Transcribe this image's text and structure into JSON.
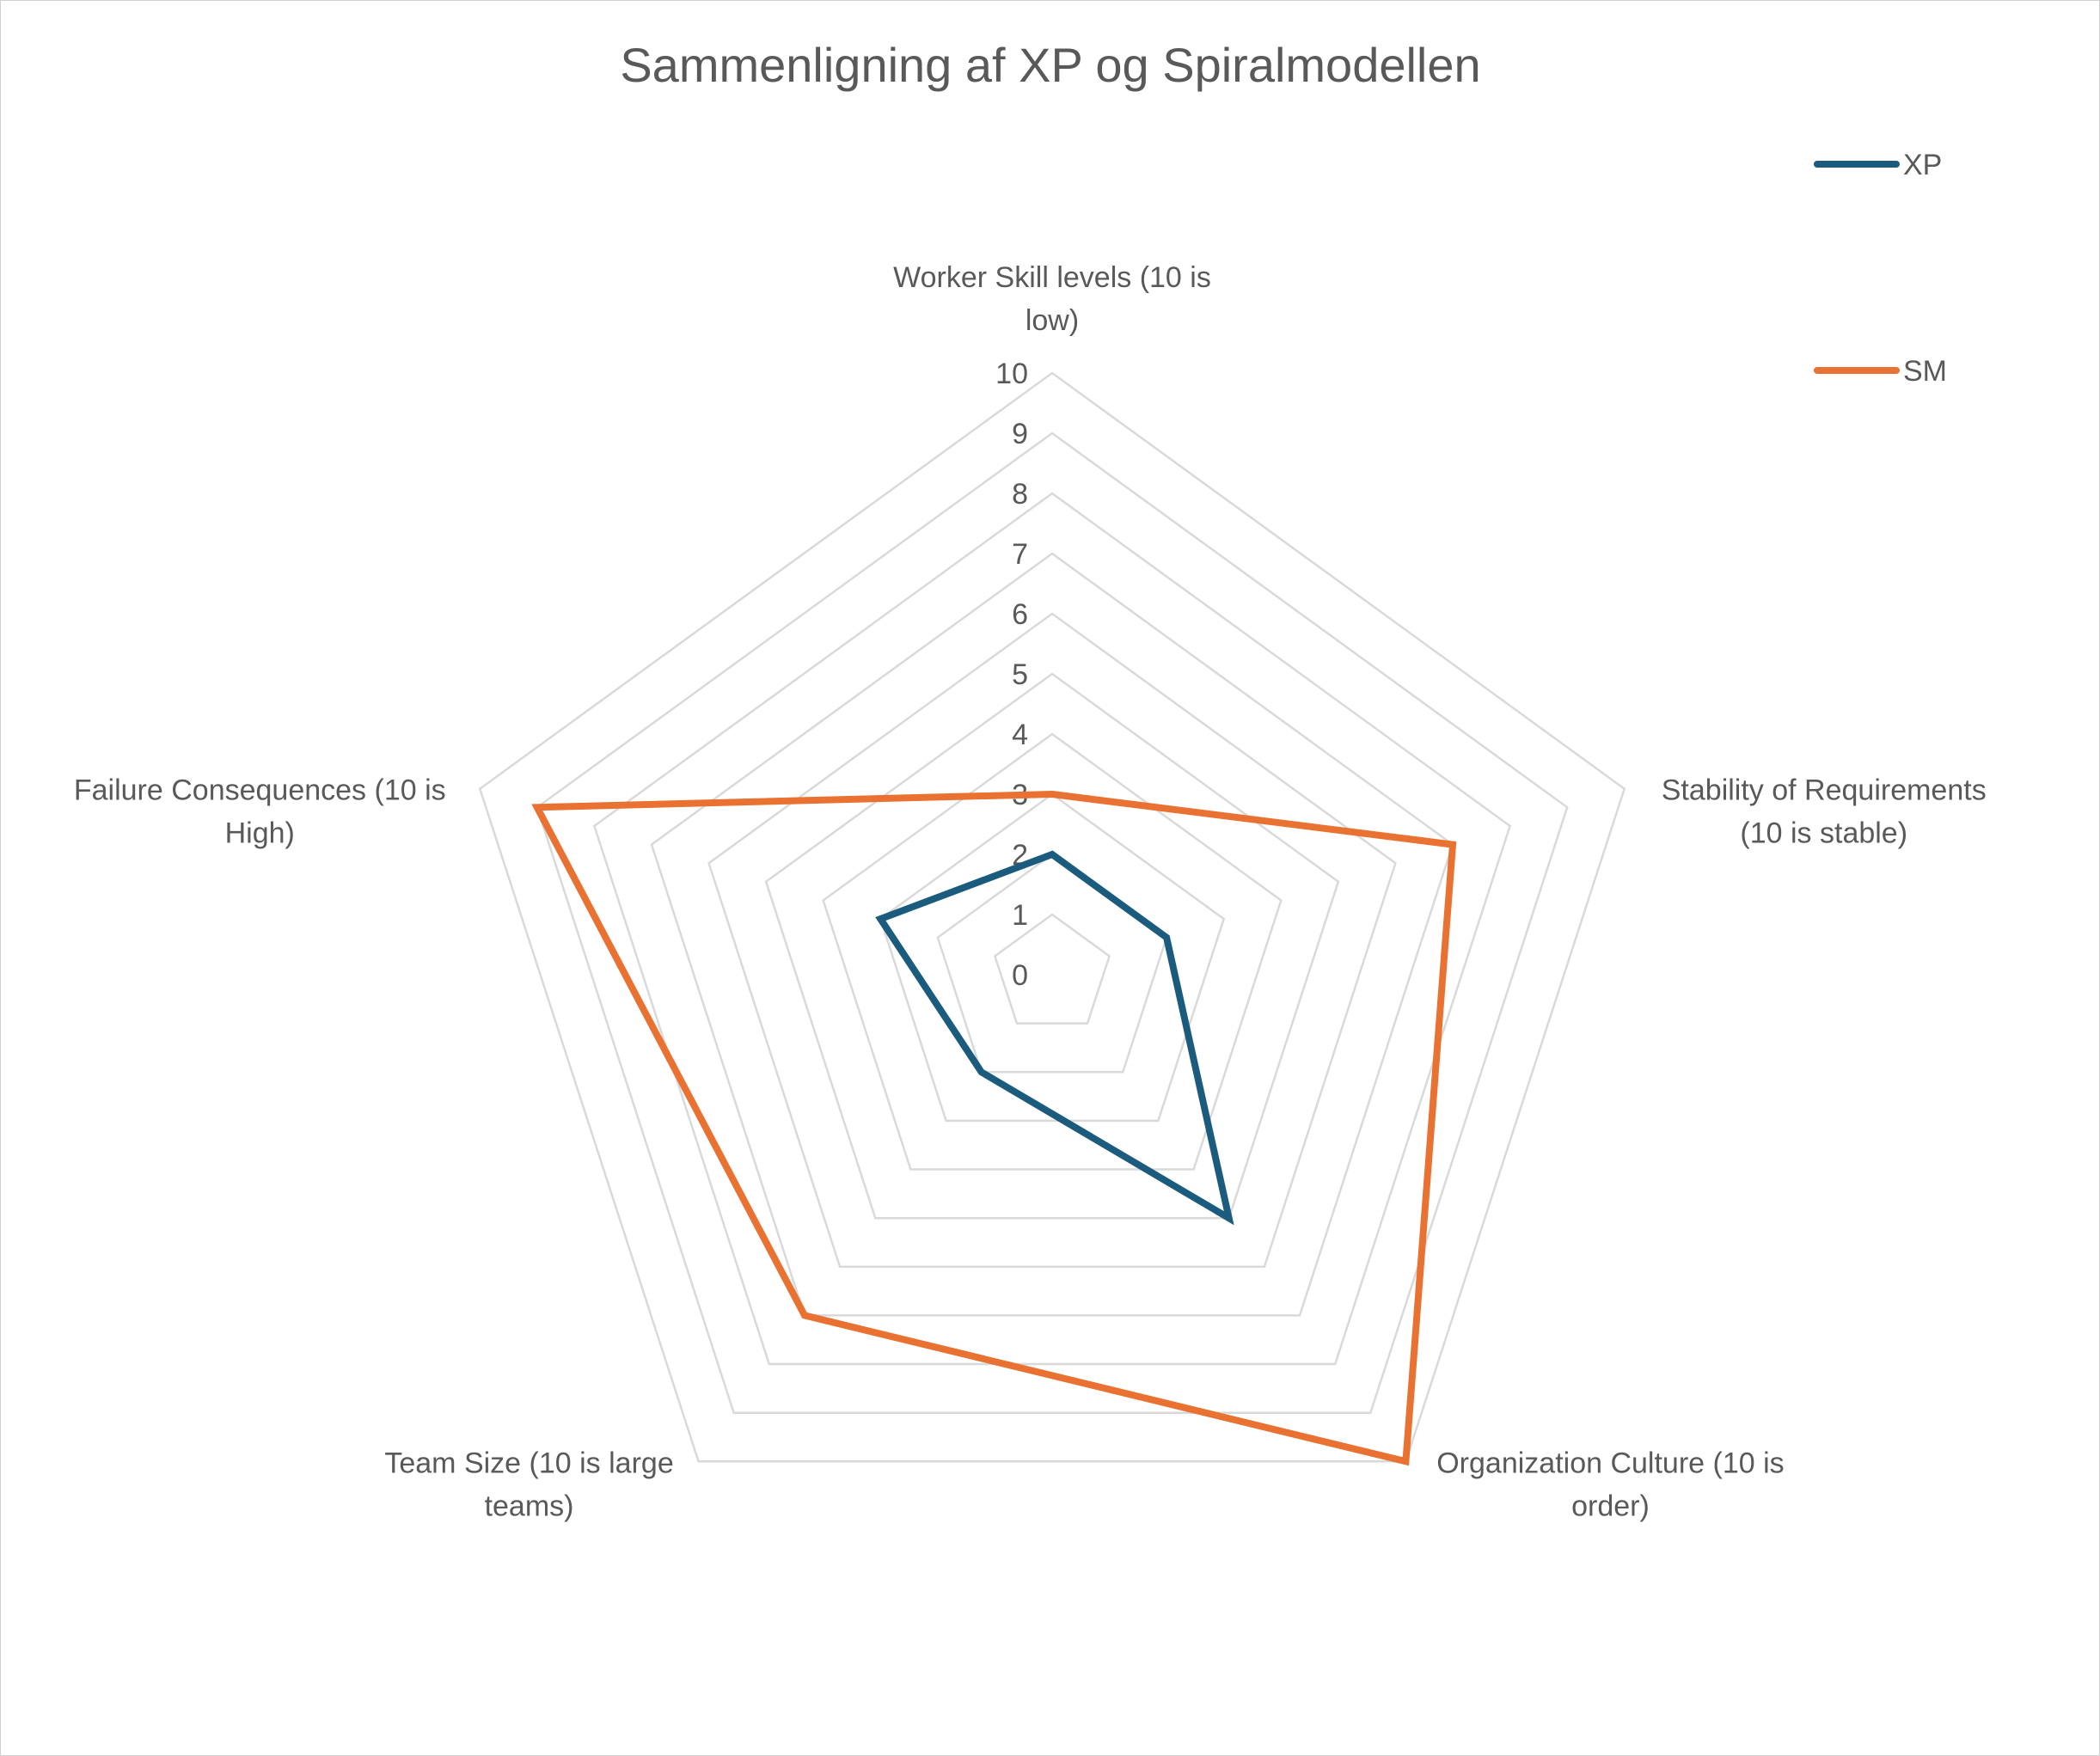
{
  "chart_data": {
    "type": "radar",
    "title": "Sammenligning af XP og Spiralmodellen",
    "axes": [
      [
        "Worker Skill levels (10 is",
        "low)"
      ],
      [
        "Stability of Requirements",
        "(10 is stable)"
      ],
      [
        "Organization Culture (10 is",
        "order)"
      ],
      [
        "Team Size (10 is large",
        "teams)"
      ],
      [
        "Failure Consequences (10 is",
        "High)"
      ]
    ],
    "rlim": [
      0,
      10
    ],
    "ticks": [
      "0",
      "1",
      "2",
      "3",
      "4",
      "5",
      "6",
      "7",
      "8",
      "9",
      "10"
    ],
    "grid": true,
    "legend_position": "top-right",
    "series": [
      {
        "name": "XP",
        "color": "#1b5c7e",
        "values": [
          2,
          2,
          5,
          2,
          3
        ]
      },
      {
        "name": "SM",
        "color": "#e97132",
        "values": [
          3,
          7,
          10,
          7,
          9
        ]
      }
    ]
  }
}
